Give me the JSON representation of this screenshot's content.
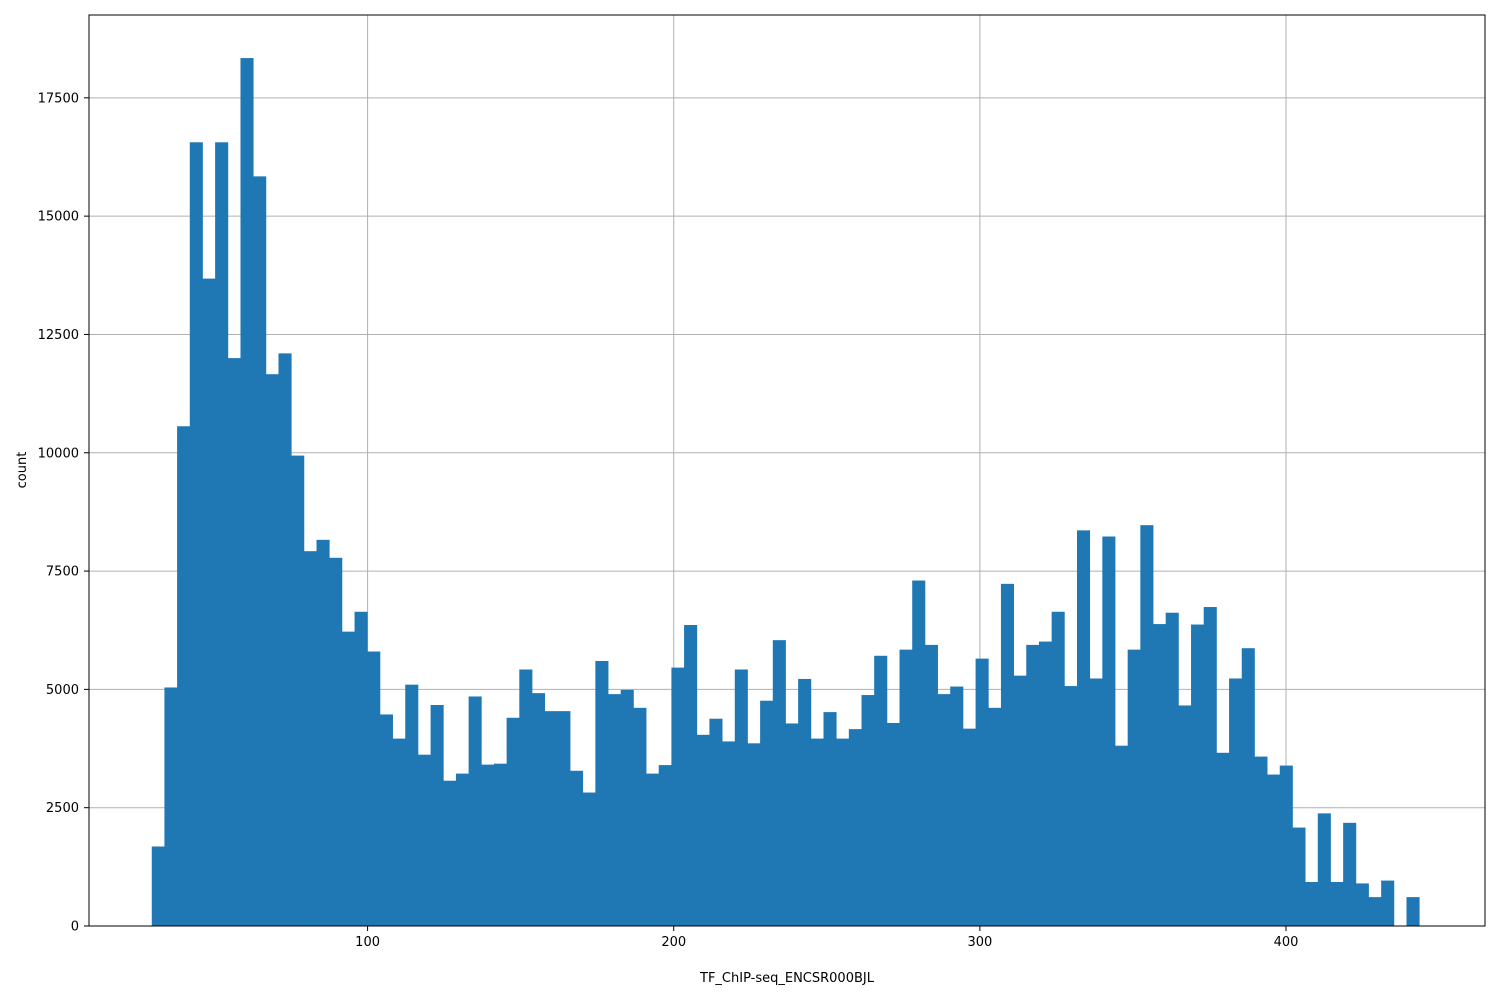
{
  "chart_data": {
    "type": "bar",
    "title": "",
    "xlabel": "TF_ChIP-seq_ENCSR000BJL",
    "ylabel": "count",
    "grid": true,
    "bar_color": "#1f77b4",
    "grid_color": "#b0b0b0",
    "xlim": [
      9,
      465
    ],
    "ylim": [
      0,
      19250
    ],
    "xticks": [
      100,
      200,
      300,
      400
    ],
    "yticks": [
      0,
      2500,
      5000,
      7500,
      10000,
      12500,
      15000,
      17500
    ],
    "bin_start": 29.5,
    "bin_width": 4.14,
    "values": [
      1680,
      5040,
      10560,
      16560,
      13680,
      16560,
      12000,
      18340,
      15840,
      11660,
      12100,
      9940,
      7920,
      8160,
      7780,
      6220,
      6640,
      5800,
      4470,
      3960,
      5100,
      3620,
      4670,
      3070,
      3220,
      4850,
      3410,
      3430,
      4400,
      5420,
      4920,
      4540,
      4540,
      3280,
      2820,
      5600,
      4900,
      4990,
      4610,
      3220,
      3400,
      5460,
      6360,
      4040,
      4380,
      3900,
      5420,
      3860,
      4760,
      6040,
      4280,
      5220,
      3960,
      4520,
      3960,
      4160,
      4880,
      5710,
      4290,
      5840,
      7300,
      5940,
      4900,
      5060,
      4170,
      5650,
      4610,
      7230,
      5290,
      5940,
      6010,
      6640,
      5070,
      8360,
      5230,
      8230,
      3810,
      5840,
      8470,
      6380,
      6620,
      4660,
      6370,
      6740,
      3660,
      5230,
      5870,
      3580,
      3200,
      3390,
      2080,
      930,
      2380,
      930,
      2180,
      900,
      610,
      960,
      0,
      610
    ]
  }
}
